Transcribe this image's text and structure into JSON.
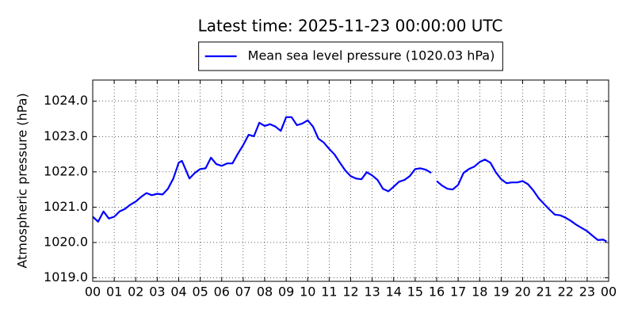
{
  "chart_data": {
    "type": "line",
    "title": "Latest time: 2025-11-23 00:00:00 UTC",
    "y_label": "Atmospheric pressure (hPa)",
    "legend": "upper center",
    "grid": true,
    "x": [
      0,
      0.25,
      0.5,
      0.75,
      1,
      1.25,
      1.5,
      1.75,
      2,
      2.25,
      2.5,
      2.75,
      3,
      3.25,
      3.5,
      3.75,
      4,
      4.15,
      4.5,
      4.75,
      5,
      5.25,
      5.5,
      5.75,
      6,
      6.25,
      6.5,
      6.75,
      7,
      7.25,
      7.5,
      7.75,
      8,
      8.25,
      8.5,
      8.75,
      9,
      9.25,
      9.5,
      9.75,
      10,
      10.25,
      10.5,
      10.75,
      11,
      11.25,
      11.5,
      11.75,
      12,
      12.25,
      12.5,
      12.75,
      13,
      13.25,
      13.5,
      13.75,
      14,
      14.25,
      14.5,
      14.75,
      15,
      15.25,
      15.5,
      15.75,
      15.9,
      16,
      16.25,
      16.5,
      16.75,
      17,
      17.25,
      17.5,
      17.75,
      18,
      18.25,
      18.5,
      18.75,
      19,
      19.25,
      19.5,
      19.75,
      20,
      20.25,
      20.5,
      20.75,
      21,
      21.25,
      21.5,
      21.75,
      22,
      22.25,
      22.5,
      22.75,
      23,
      23.25,
      23.5,
      23.75,
      23.9
    ],
    "series": [
      {
        "name": "Mean sea level pressure (1020.03 hPa)",
        "color": "#0000ff",
        "values": [
          1020.73,
          1020.59,
          1020.88,
          1020.68,
          1020.73,
          1020.88,
          1020.95,
          1021.07,
          1021.16,
          1021.29,
          1021.4,
          1021.34,
          1021.38,
          1021.36,
          1021.52,
          1021.81,
          1022.26,
          1022.31,
          1021.81,
          1021.97,
          1022.08,
          1022.1,
          1022.4,
          1022.22,
          1022.17,
          1022.24,
          1022.24,
          1022.51,
          1022.76,
          1023.05,
          1023.01,
          1023.39,
          1023.3,
          1023.35,
          1023.28,
          1023.16,
          1023.55,
          1023.55,
          1023.32,
          1023.37,
          1023.46,
          1023.28,
          1022.94,
          1022.83,
          1022.65,
          1022.49,
          1022.26,
          1022.04,
          1021.88,
          1021.81,
          1021.79,
          1021.99,
          1021.9,
          1021.77,
          1021.52,
          1021.45,
          1021.58,
          1021.72,
          1021.77,
          1021.88,
          1022.08,
          1022.1,
          1022.06,
          1021.97,
          null,
          1021.74,
          1021.61,
          1021.52,
          1021.5,
          1021.63,
          1021.97,
          1022.08,
          1022.15,
          1022.28,
          1022.35,
          1022.26,
          1021.99,
          1021.79,
          1021.68,
          1021.7,
          1021.7,
          1021.74,
          1021.65,
          1021.47,
          1021.25,
          1021.09,
          1020.93,
          1020.79,
          1020.77,
          1020.7,
          1020.61,
          1020.5,
          1020.41,
          1020.32,
          1020.19,
          1020.07,
          1020.08,
          1020.03
        ]
      }
    ],
    "xlim": [
      0,
      24
    ],
    "xticks": [
      {
        "value": 0,
        "label": "00"
      },
      {
        "value": 1,
        "label": "01"
      },
      {
        "value": 2,
        "label": "02"
      },
      {
        "value": 3,
        "label": "03"
      },
      {
        "value": 4,
        "label": "04"
      },
      {
        "value": 5,
        "label": "05"
      },
      {
        "value": 6,
        "label": "06"
      },
      {
        "value": 7,
        "label": "07"
      },
      {
        "value": 8,
        "label": "08"
      },
      {
        "value": 9,
        "label": "09"
      },
      {
        "value": 10,
        "label": "10"
      },
      {
        "value": 11,
        "label": "11"
      },
      {
        "value": 12,
        "label": "12"
      },
      {
        "value": 13,
        "label": "13"
      },
      {
        "value": 14,
        "label": "14"
      },
      {
        "value": 15,
        "label": "15"
      },
      {
        "value": 16,
        "label": "16"
      },
      {
        "value": 17,
        "label": "17"
      },
      {
        "value": 18,
        "label": "18"
      },
      {
        "value": 19,
        "label": "19"
      },
      {
        "value": 20,
        "label": "20"
      },
      {
        "value": 21,
        "label": "21"
      },
      {
        "value": 22,
        "label": "22"
      },
      {
        "value": 23,
        "label": "23"
      },
      {
        "value": 24,
        "label": "00"
      }
    ],
    "ylim": [
      1018.9,
      1024.6
    ],
    "yticks": [
      {
        "value": 1019,
        "label": "1019.0"
      },
      {
        "value": 1020,
        "label": "1020.0"
      },
      {
        "value": 1021,
        "label": "1021.0"
      },
      {
        "value": 1022,
        "label": "1022.0"
      },
      {
        "value": 1023,
        "label": "1023.0"
      },
      {
        "value": 1024,
        "label": "1024.0"
      }
    ]
  }
}
